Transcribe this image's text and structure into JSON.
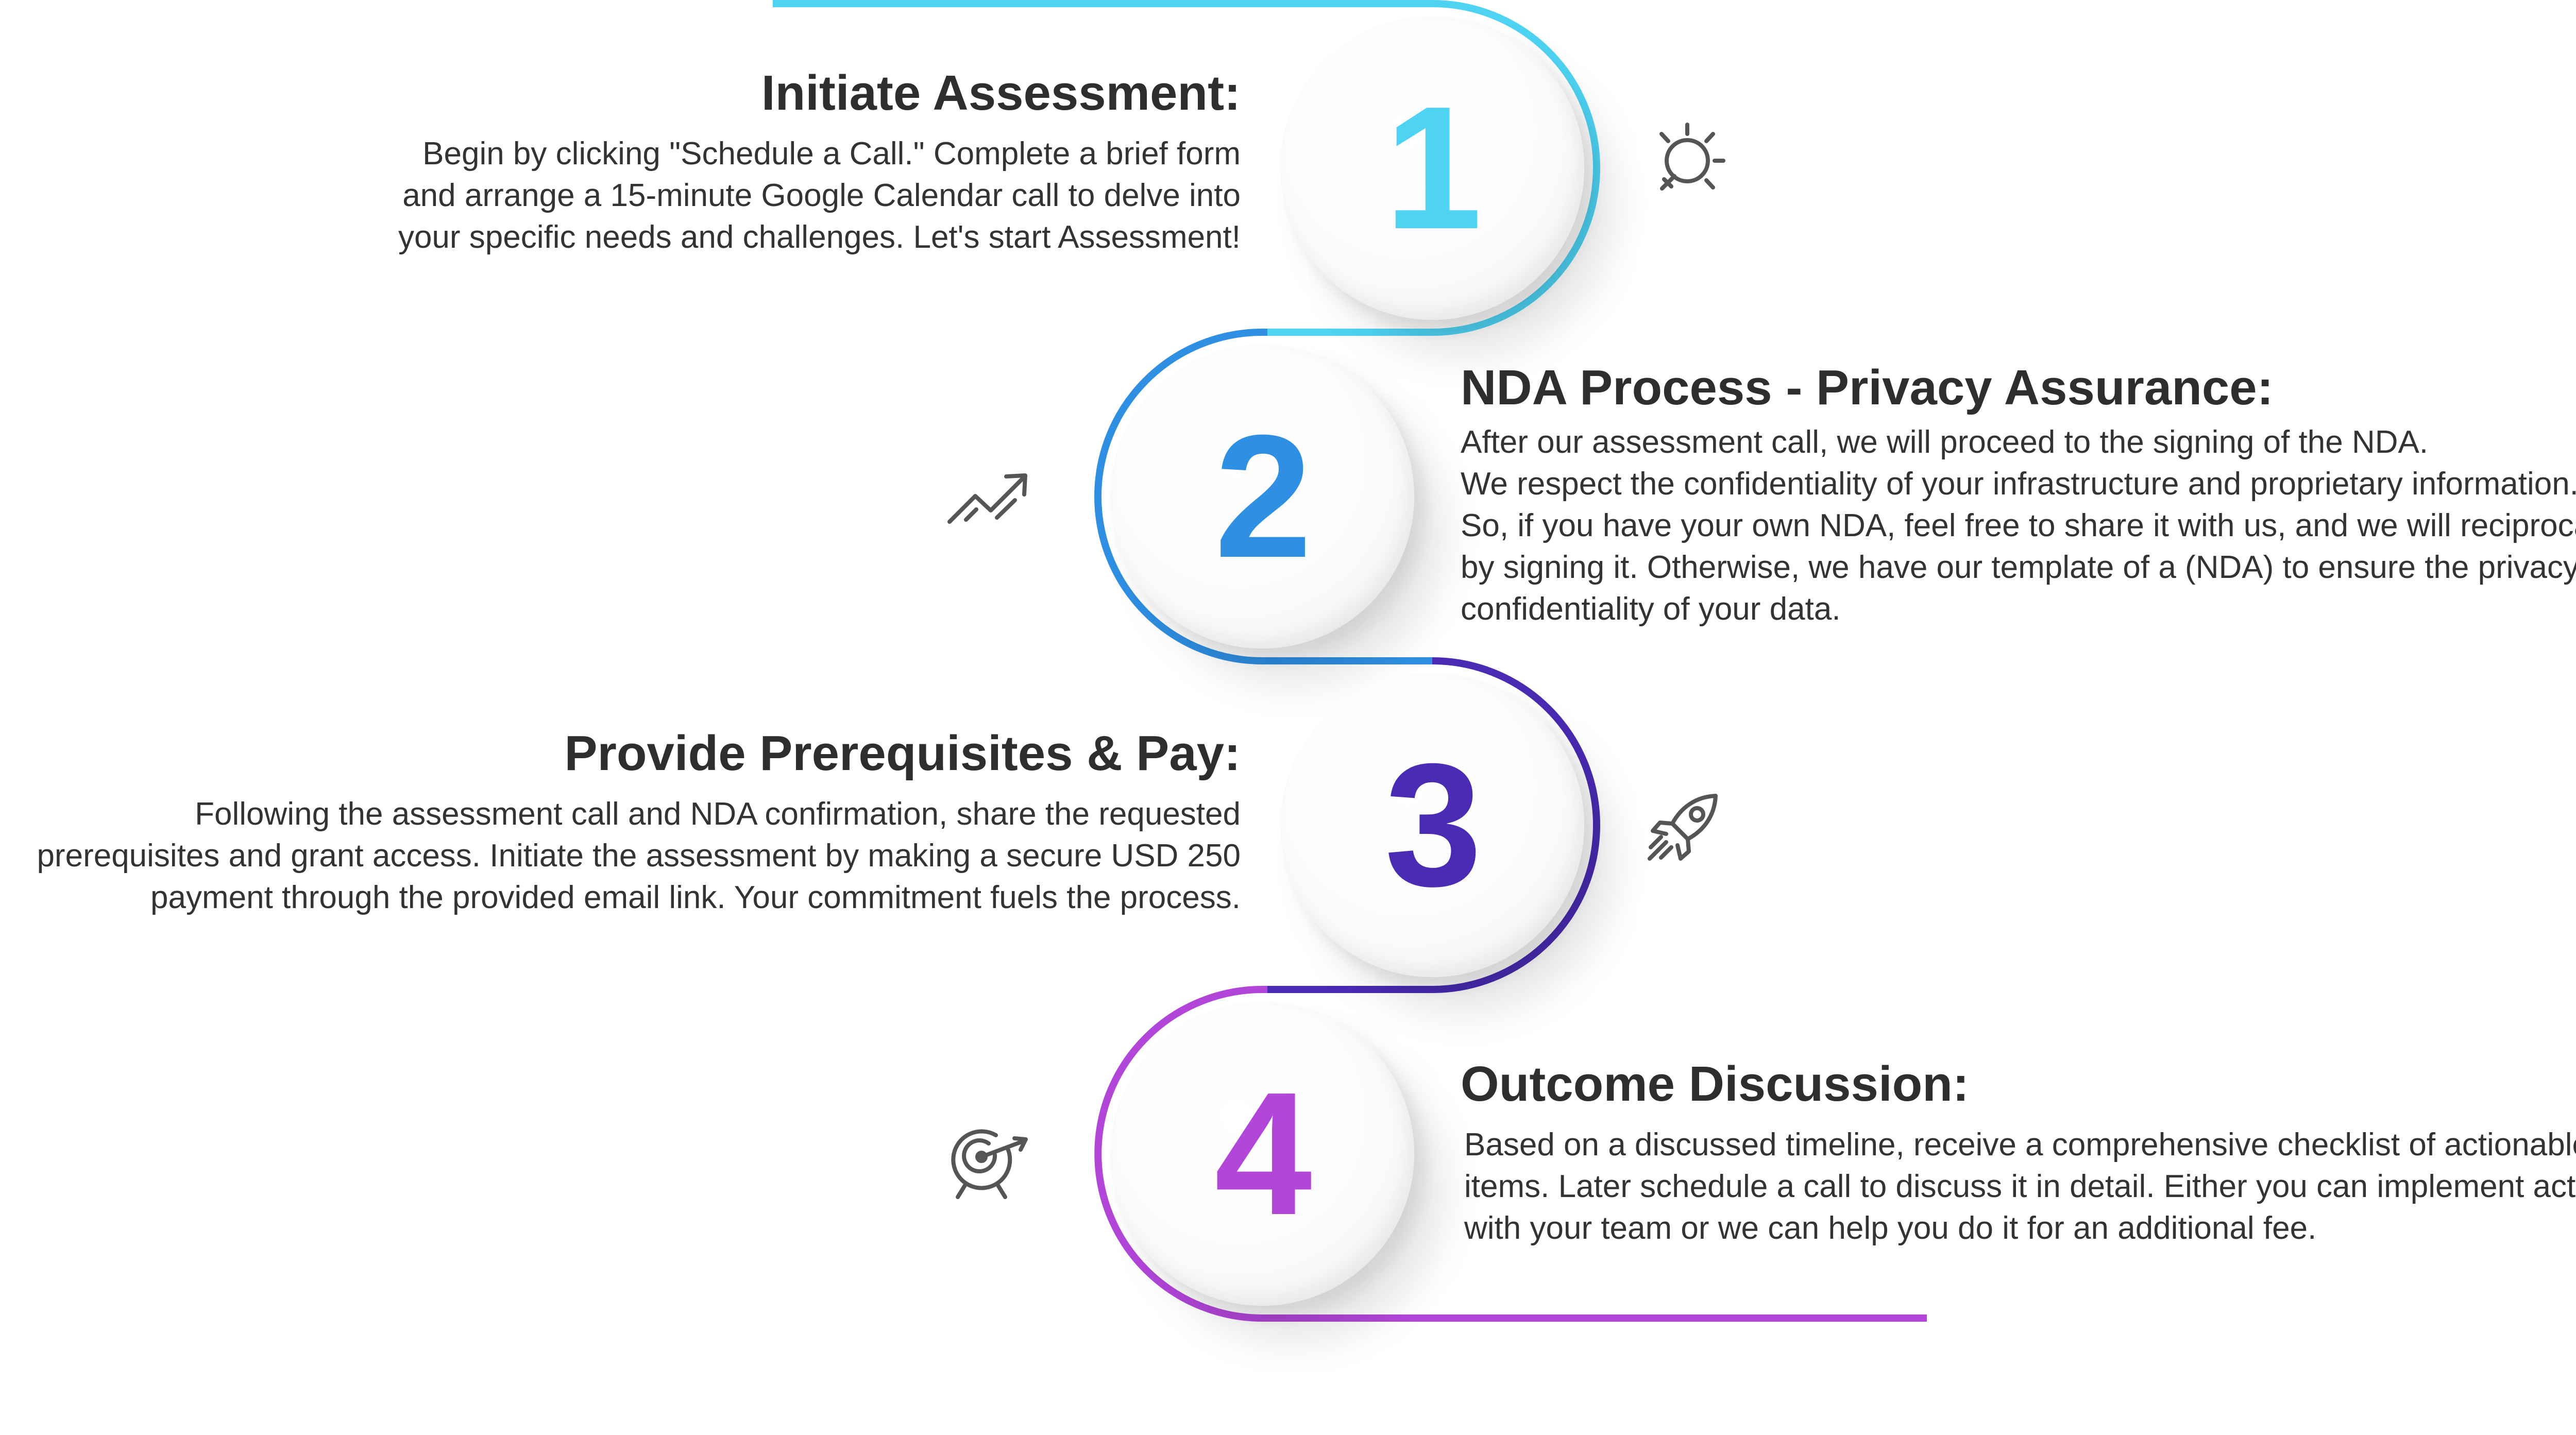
{
  "colors": {
    "step1": "#4ed3f3",
    "step2": "#2f8fe2",
    "step3": "#4a2bb3",
    "step4": "#b246d9",
    "icon": "#555555"
  },
  "steps": [
    {
      "number": "1",
      "title": "Initiate Assessment:",
      "body": [
        "Begin by clicking \"Schedule a Call.\" Complete a brief form",
        "and arrange a 15-minute Google Calendar call to delve into",
        "your specific needs and challenges. Let's start Assessment!"
      ],
      "icon": "lightbulb-icon"
    },
    {
      "number": "2",
      "title": "NDA Process - Privacy Assurance:",
      "body": [
        "After our assessment call, we will proceed to the signing of the NDA.",
        "We respect the confidentiality of your infrastructure and proprietary information.",
        "So, if you have your own NDA, feel free to share it with us, and we will reciprocate",
        "by signing it. Otherwise, we have our template of a (NDA) to ensure the privacy and",
        "confidentiality of your data."
      ],
      "icon": "trend-up-icon"
    },
    {
      "number": "3",
      "title": "Provide Prerequisites & Pay:",
      "body": [
        "Following the assessment call and NDA confirmation, share the requested",
        "prerequisites and grant access. Initiate the assessment by making a secure USD 250",
        "payment through the provided email link. Your commitment fuels the process."
      ],
      "icon": "rocket-icon"
    },
    {
      "number": "4",
      "title": "Outcome Discussion:",
      "body": [
        "Based on a discussed timeline, receive a comprehensive checklist of actionable",
        "items. Later schedule a call to discuss it in detail. Either you can implement actions",
        "with your team or we can help you do it for an additional fee."
      ],
      "icon": "target-icon"
    }
  ]
}
